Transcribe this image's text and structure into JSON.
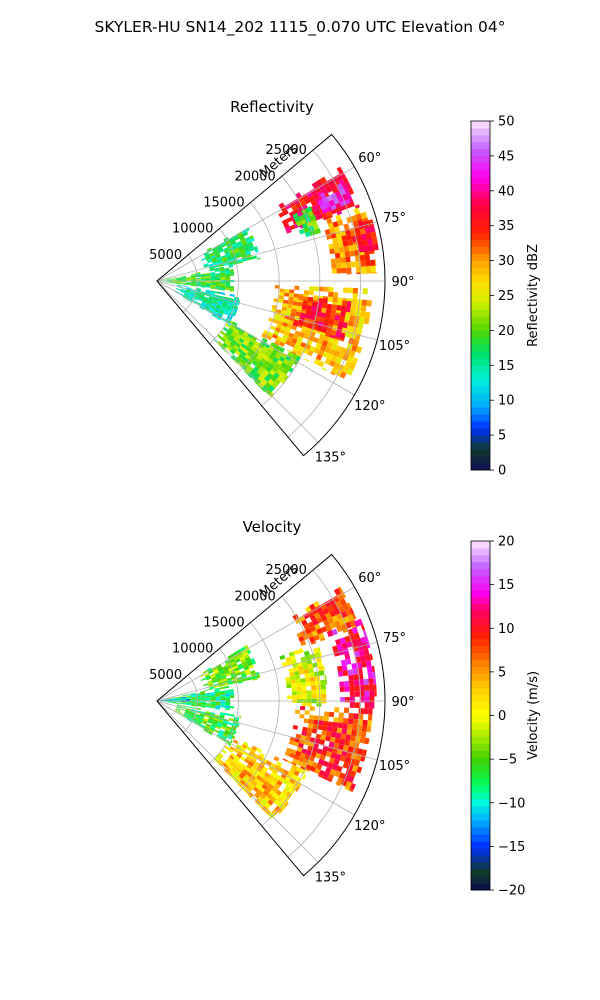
{
  "figure": {
    "title": "SKYLER-HU  SN14_202  1115_0.070 UTC Elevation 04°"
  },
  "chart_data": [
    {
      "type": "heatmap",
      "projection": "polar-sector",
      "title": "Reflectivity",
      "radial_label": "Meters",
      "radial_ticks": [
        "5000",
        "10000",
        "15000",
        "20000",
        "25000"
      ],
      "radial_tick_values": [
        5000,
        10000,
        15000,
        20000,
        25000
      ],
      "radial_range": [
        0,
        28000
      ],
      "azimuth_range": [
        50,
        140
      ],
      "azimuth_ticks": [
        "60°",
        "75°",
        "90°",
        "105°",
        "120°",
        "135°"
      ],
      "azimuth_tick_values": [
        60,
        75,
        90,
        105,
        120,
        135
      ],
      "grid": true,
      "colorbar": {
        "label": "Reflectivity dBZ",
        "min": 0,
        "max": 50,
        "ticks": [
          "0",
          "5",
          "10",
          "15",
          "20",
          "25",
          "30",
          "35",
          "40",
          "45",
          "50"
        ],
        "tick_values": [
          0,
          5,
          10,
          15,
          20,
          25,
          30,
          35,
          40,
          45,
          50
        ]
      },
      "field_blobs": [
        {
          "az": [
            58,
            70
          ],
          "r": [
            17000,
            26500
          ],
          "value": 38
        },
        {
          "az": [
            62,
            68
          ],
          "r": [
            22000,
            26000
          ],
          "value": 44
        },
        {
          "az": [
            70,
            88
          ],
          "r": [
            21500,
            27000
          ],
          "value": 32
        },
        {
          "az": [
            74,
            82
          ],
          "r": [
            24500,
            27500
          ],
          "value": 37
        },
        {
          "az": [
            92,
            118
          ],
          "r": [
            14500,
            26500
          ],
          "value": 30
        },
        {
          "az": [
            96,
            108
          ],
          "r": [
            17500,
            24000
          ],
          "value": 37
        },
        {
          "az": [
            118,
            136
          ],
          "r": [
            10000,
            20000
          ],
          "value": 22
        },
        {
          "az": [
            78,
            98
          ],
          "r": [
            0,
            9500
          ],
          "value": 20
        },
        {
          "az": [
            58,
            78
          ],
          "r": [
            6000,
            13000
          ],
          "value": 18
        },
        {
          "az": [
            100,
            122
          ],
          "r": [
            2500,
            10500
          ],
          "value": 15
        },
        {
          "az": [
            64,
            74
          ],
          "r": [
            18500,
            21000
          ],
          "value": 20
        }
      ]
    },
    {
      "type": "heatmap",
      "projection": "polar-sector",
      "title": "Velocity",
      "radial_label": "Meters",
      "radial_ticks": [
        "5000",
        "10000",
        "15000",
        "20000",
        "25000"
      ],
      "radial_tick_values": [
        5000,
        10000,
        15000,
        20000,
        25000
      ],
      "radial_range": [
        0,
        28000
      ],
      "azimuth_range": [
        50,
        140
      ],
      "azimuth_ticks": [
        "60°",
        "75°",
        "90°",
        "105°",
        "120°",
        "135°"
      ],
      "azimuth_tick_values": [
        60,
        75,
        90,
        105,
        120,
        135
      ],
      "grid": true,
      "colorbar": {
        "label": "Velocity (m/s)",
        "min": -20,
        "max": 20,
        "ticks": [
          "−20",
          "−15",
          "−10",
          "−5",
          "0",
          "5",
          "10",
          "15",
          "20"
        ],
        "tick_values": [
          -20,
          -15,
          -10,
          -5,
          0,
          5,
          10,
          15,
          20
        ]
      },
      "field_blobs": [
        {
          "az": [
            58,
            70
          ],
          "r": [
            19000,
            26500
          ],
          "value": 8
        },
        {
          "az": [
            68,
            92
          ],
          "r": [
            22500,
            27000
          ],
          "value": 14
        },
        {
          "az": [
            92,
            115
          ],
          "r": [
            17000,
            26500
          ],
          "value": 9
        },
        {
          "az": [
            115,
            136
          ],
          "r": [
            10000,
            20500
          ],
          "value": 4
        },
        {
          "az": [
            70,
            92
          ],
          "r": [
            16000,
            21000
          ],
          "value": 1
        },
        {
          "az": [
            78,
            98
          ],
          "r": [
            0,
            9500
          ],
          "value": -6
        },
        {
          "az": [
            82,
            92
          ],
          "r": [
            0,
            4000
          ],
          "value": -10
        },
        {
          "az": [
            58,
            78
          ],
          "r": [
            6000,
            13000
          ],
          "value": -3
        },
        {
          "az": [
            100,
            122
          ],
          "r": [
            2500,
            10500
          ],
          "value": -5
        }
      ]
    }
  ]
}
